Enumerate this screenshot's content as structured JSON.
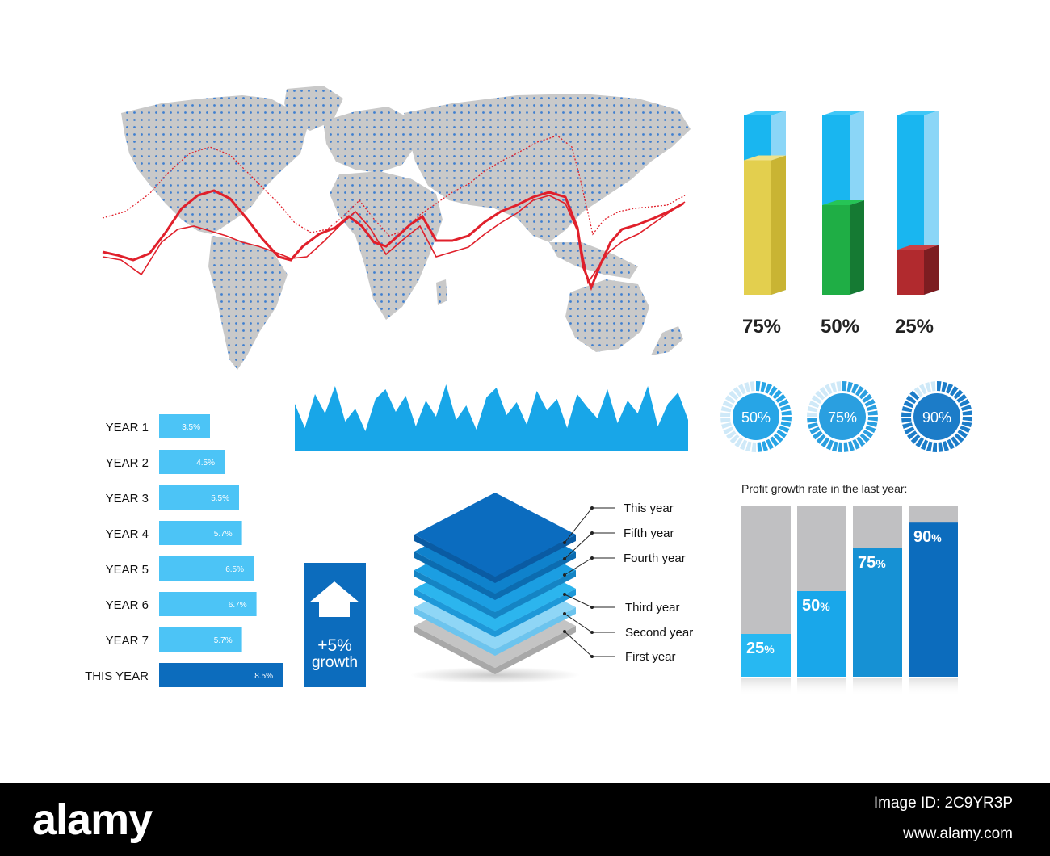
{
  "colors": {
    "map_gray": "#c9c9c9",
    "map_dot": "#3f7fd0",
    "line_red": "#e0202b",
    "bar_light": "#4cc4f6",
    "bar_dark": "#0c6cbd",
    "wave_blue": "#18a6e8",
    "gray_bar": "#c0c0c2",
    "footer_bg": "#000000"
  },
  "cylinders": {
    "items": [
      {
        "label": "75%",
        "value": 75,
        "color_front": "#e3cf4e",
        "color_side": "#c9b433",
        "color_top": "#efe28a"
      },
      {
        "label": "50%",
        "value": 50,
        "color_front": "#1fae45",
        "color_side": "#157a33",
        "color_top": "#26c456"
      },
      {
        "label": "25%",
        "value": 25,
        "color_front": "#b12a2e",
        "color_side": "#7d1d21",
        "color_top": "#c84046"
      }
    ]
  },
  "rings": {
    "items": [
      {
        "label": "50%",
        "value": 50,
        "color": "#27a5e6"
      },
      {
        "label": "75%",
        "value": 75,
        "color": "#2a9fe0"
      },
      {
        "label": "90%",
        "value": 90,
        "color": "#1c7cc8"
      }
    ]
  },
  "chart_data": [
    {
      "type": "bar",
      "orientation": "horizontal",
      "categories": [
        "YEAR 1",
        "YEAR 2",
        "YEAR 3",
        "YEAR 4",
        "YEAR 5",
        "YEAR 6",
        "YEAR 7",
        "THIS YEAR"
      ],
      "values": [
        3.5,
        4.5,
        5.5,
        5.7,
        6.5,
        6.7,
        5.7,
        8.5
      ],
      "value_labels": [
        "3.5%",
        "4.5%",
        "5.5%",
        "5.7%",
        "6.5%",
        "6.7%",
        "5.7%",
        "8.5%"
      ]
    },
    {
      "type": "bar",
      "title": "Profit growth rate in the last year:",
      "values": [
        25,
        50,
        75,
        90
      ],
      "value_labels": [
        "25",
        "50",
        "75",
        "90"
      ],
      "unit": "%",
      "ylim": [
        0,
        100
      ]
    }
  ],
  "growth_box": {
    "value": "+5%",
    "label": "growth"
  },
  "layers": {
    "labels": [
      "This year",
      "Fifth year",
      "Fourth year",
      "Third year",
      "Second year",
      "First year"
    ]
  },
  "footer": {
    "logo": "alamy",
    "image_id": "Image ID: 2C9YR3P",
    "url": "www.alamy.com"
  }
}
